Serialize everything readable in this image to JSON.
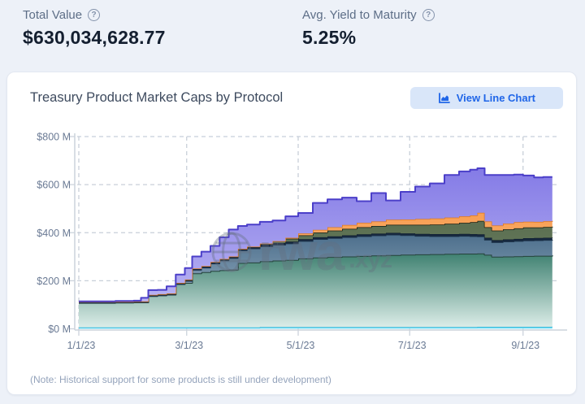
{
  "header": {
    "help_glyph": "?",
    "stats": [
      {
        "label": "Total Value",
        "value": "$630,034,628.77"
      },
      {
        "label": "Avg. Yield to Maturity",
        "value": "5.25%"
      }
    ]
  },
  "card": {
    "title": "Treasury Product Market Caps by Protocol",
    "button": {
      "label": "View Line Chart",
      "icon": "area-chart-icon"
    },
    "note": "(Note: Historical support for some products is still under development)",
    "watermark": {
      "brand": "rwa",
      "suffix": ".xyz",
      "icon": "globe-icon"
    }
  },
  "colors": {
    "page_bg": "#edf1f8",
    "card_bg": "#ffffff",
    "accent_blue": "#2066e8",
    "button_bg": "#d9e6f9",
    "axis_text": "#6a7a94",
    "grid": "#c8cfd9",
    "axis_line": "#ccd3dc"
  },
  "chart_data": {
    "type": "area",
    "stacked": true,
    "title": "Treasury Product Market Caps by Protocol",
    "x_unit": "days since 1/1/23",
    "y_unit": "$ millions",
    "ylim": [
      0,
      800
    ],
    "xlim_days": [
      0,
      262
    ],
    "grid": "dashed",
    "x": [
      0,
      10,
      20,
      30,
      34,
      38,
      43,
      48,
      53,
      58,
      62,
      67,
      72,
      77,
      82,
      87,
      92,
      99,
      106,
      113,
      120,
      128,
      136,
      144,
      152,
      160,
      168,
      176,
      184,
      192,
      200,
      208,
      214,
      218,
      222,
      226,
      232,
      238,
      243,
      249,
      254,
      259
    ],
    "x_ticks": [
      {
        "label": "1/1/23",
        "day": 0
      },
      {
        "label": "3/1/23",
        "day": 59
      },
      {
        "label": "5/1/23",
        "day": 120
      },
      {
        "label": "7/1/23",
        "day": 181
      },
      {
        "label": "9/1/23",
        "day": 243
      }
    ],
    "y_ticks": [
      {
        "label": "$0 M",
        "value": 0
      },
      {
        "label": "$200 M",
        "value": 200
      },
      {
        "label": "$400 M",
        "value": 400
      },
      {
        "label": "$600 M",
        "value": 600
      },
      {
        "label": "$800 M",
        "value": 800
      }
    ],
    "series": [
      {
        "name": "cyan-band",
        "fill_top": "#4fd6f4",
        "fill_bottom": "#9feafb",
        "stroke": "#17a9d1",
        "stroke_w": 1.5,
        "values": [
          6,
          6,
          6,
          6,
          6,
          6,
          6,
          6,
          6,
          6,
          6,
          6,
          6,
          6,
          6,
          6,
          6,
          7,
          7,
          7,
          7,
          7,
          7,
          7,
          7,
          7,
          7,
          7,
          7,
          7,
          7,
          7,
          7,
          8,
          8,
          8,
          8,
          8,
          8,
          8,
          8,
          8
        ]
      },
      {
        "name": "teal-green-band",
        "fill_top": "#3f8171",
        "fill_bottom": "#dcede8",
        "stroke": "#24423a",
        "stroke_w": 2,
        "values": [
          102,
          102,
          103,
          104,
          104,
          130,
          133,
          136,
          180,
          185,
          225,
          230,
          235,
          238,
          240,
          268,
          270,
          274,
          277,
          280,
          286,
          290,
          292,
          294,
          296,
          298,
          300,
          302,
          303,
          304,
          305,
          306,
          306,
          306,
          300,
          292,
          293,
          294,
          295,
          296,
          296,
          297
        ]
      },
      {
        "name": "slate-blue-band",
        "fill_top": "#4d6f8c",
        "fill_bottom": "#93acc0",
        "stroke": "#223a52",
        "stroke_w": 1.5,
        "values": [
          0,
          0,
          0,
          0,
          0,
          0,
          0,
          0,
          0,
          8,
          14,
          18,
          30,
          40,
          48,
          52,
          58,
          62,
          65,
          68,
          72,
          76,
          78,
          80,
          82,
          83,
          84,
          80,
          76,
          74,
          73,
          73,
          72,
          70,
          62,
          60,
          62,
          63,
          64,
          64,
          65,
          65
        ]
      },
      {
        "name": "navy-band",
        "fill_top": "#16283f",
        "fill_bottom": "#16283f",
        "stroke": "#0e1b2c",
        "stroke_w": 1,
        "values": [
          4,
          4,
          4,
          4,
          4,
          5,
          5,
          5,
          5,
          6,
          6,
          7,
          7,
          7,
          7,
          7,
          8,
          8,
          8,
          8,
          8,
          8,
          8,
          8,
          8,
          8,
          8,
          8,
          9,
          9,
          9,
          9,
          9,
          9,
          9,
          9,
          9,
          9,
          10,
          10,
          10,
          10
        ]
      },
      {
        "name": "olive-green-band",
        "fill_top": "#5a6e50",
        "fill_bottom": "#74876a",
        "stroke": "#141d12",
        "stroke_w": 1.5,
        "values": [
          0,
          0,
          0,
          0,
          0,
          0,
          0,
          0,
          0,
          0,
          0,
          0,
          0,
          0,
          0,
          0,
          0,
          4,
          8,
          12,
          16,
          20,
          24,
          27,
          30,
          32,
          34,
          36,
          38,
          40,
          43,
          46,
          50,
          56,
          44,
          40,
          42,
          44,
          45,
          44,
          45,
          45
        ]
      },
      {
        "name": "orange-band",
        "fill_top": "#f89e52",
        "fill_bottom": "#fbc38d",
        "stroke": "#df7a22",
        "stroke_w": 1.5,
        "values": [
          0,
          0,
          0,
          0,
          0,
          0,
          0,
          0,
          0,
          0,
          0,
          0,
          0,
          0,
          0,
          0,
          0,
          0,
          0,
          4,
          8,
          11,
          14,
          16,
          18,
          19,
          21,
          22,
          24,
          25,
          26,
          27,
          28,
          34,
          24,
          21,
          24,
          26,
          24,
          23,
          24,
          24
        ]
      },
      {
        "name": "purple-band",
        "fill_top": "#847be6",
        "fill_bottom": "#b9b3f3",
        "stroke": "#4b3fc9",
        "stroke_w": 2,
        "values": [
          2,
          2,
          3,
          3,
          15,
          20,
          18,
          30,
          35,
          48,
          50,
          60,
          67,
          90,
          112,
          95,
          92,
          90,
          86,
          89,
          85,
          112,
          116,
          114,
          90,
          118,
          80,
          115,
          135,
          146,
          177,
          187,
          190,
          185,
          193,
          210,
          202,
          198,
          192,
          185,
          184,
          183
        ]
      }
    ]
  }
}
